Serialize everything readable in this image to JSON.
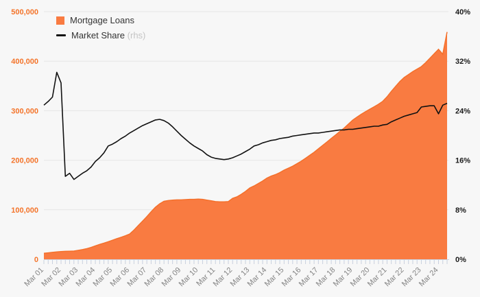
{
  "legend": {
    "items": [
      {
        "label": "Mortgage Loans",
        "suffix": "",
        "type": "area"
      },
      {
        "label": "Market Share",
        "suffix": " (rhs)",
        "type": "line"
      }
    ]
  },
  "chart_data": {
    "type": "area+line combo",
    "frequency": "quarterly",
    "x_start": "Mar 01",
    "x_end": "Sep 24",
    "x_tick_labels": [
      "Mar 01",
      "Mar 02",
      "Mar 03",
      "Mar 04",
      "Mar 05",
      "Mar 06",
      "Mar 07",
      "Mar 08",
      "Mar 09",
      "Mar 10",
      "Mar 11",
      "Mar 12",
      "Mar 13",
      "Mar 14",
      "Mar 15",
      "Mar 16",
      "Mar 17",
      "Mar 18",
      "Mar 19",
      "Mar 20",
      "Mar 21",
      "Mar 22",
      "Mar 23",
      "Mar 24"
    ],
    "grid": true,
    "legend_position": "top-left",
    "background_color": "#f7f7f7",
    "gridline_color": "#e6e6e6",
    "tick_color": "#c9d0de",
    "series": [
      {
        "name": "Mortgage Loans",
        "type": "area",
        "axis": "left",
        "color": "#f97b41",
        "edge_color": "#f4702b",
        "values": [
          12000,
          13000,
          14000,
          15000,
          15500,
          16000,
          16300,
          16600,
          18000,
          19500,
          21500,
          24000,
          27000,
          30000,
          32500,
          35500,
          38500,
          41500,
          44500,
          47500,
          51000,
          59000,
          68000,
          77000,
          86000,
          96000,
          105000,
          112000,
          117000,
          118500,
          119500,
          120000,
          120000,
          120500,
          121000,
          121000,
          121500,
          121000,
          119500,
          118000,
          116500,
          116000,
          116000,
          116500,
          123000,
          126000,
          131000,
          137000,
          144000,
          148000,
          153000,
          158000,
          164000,
          168000,
          171000,
          175000,
          180000,
          184000,
          188000,
          193000,
          198000,
          204000,
          210000,
          216000,
          223000,
          230000,
          237000,
          244000,
          251000,
          258000,
          265000,
          273000,
          281000,
          287000,
          293000,
          298000,
          303000,
          308000,
          313000,
          319000,
          328000,
          339000,
          349000,
          359000,
          367000,
          373000,
          379000,
          384000,
          389000,
          397000,
          406000,
          415000,
          424000,
          414000,
          459000
        ]
      },
      {
        "name": "Market Share (rhs)",
        "type": "line",
        "axis": "right",
        "color": "#111111",
        "values": [
          24.9,
          25.5,
          26.2,
          30.2,
          28.5,
          13.4,
          13.9,
          12.9,
          13.4,
          13.9,
          14.3,
          14.9,
          15.8,
          16.4,
          17.2,
          18.3,
          18.6,
          19.0,
          19.5,
          19.9,
          20.4,
          20.8,
          21.2,
          21.6,
          21.9,
          22.2,
          22.5,
          22.6,
          22.4,
          22.0,
          21.4,
          20.7,
          20.0,
          19.4,
          18.8,
          18.3,
          17.9,
          17.5,
          16.9,
          16.5,
          16.3,
          16.2,
          16.1,
          16.2,
          16.4,
          16.7,
          17.0,
          17.4,
          17.8,
          18.3,
          18.5,
          18.8,
          19.0,
          19.2,
          19.3,
          19.5,
          19.6,
          19.7,
          19.9,
          20.0,
          20.1,
          20.2,
          20.3,
          20.4,
          20.4,
          20.5,
          20.6,
          20.7,
          20.8,
          20.9,
          20.9,
          21.0,
          21.0,
          21.1,
          21.2,
          21.3,
          21.4,
          21.5,
          21.5,
          21.7,
          21.8,
          22.2,
          22.5,
          22.8,
          23.1,
          23.3,
          23.5,
          23.7,
          24.6,
          24.7,
          24.8,
          24.8,
          23.5,
          24.9,
          25.2
        ]
      }
    ],
    "y_axis_left": {
      "min": 0,
      "max": 500000,
      "tick_labels": [
        "0",
        "100,000",
        "200,000",
        "300,000",
        "400,000",
        "500,000"
      ],
      "label_color": "#f4742a"
    },
    "y_axis_right": {
      "min": 0,
      "max": 40,
      "tick_labels": [
        "0%",
        "8%",
        "16%",
        "24%",
        "32%",
        "40%"
      ],
      "label_color": "#1a1a1a"
    }
  }
}
